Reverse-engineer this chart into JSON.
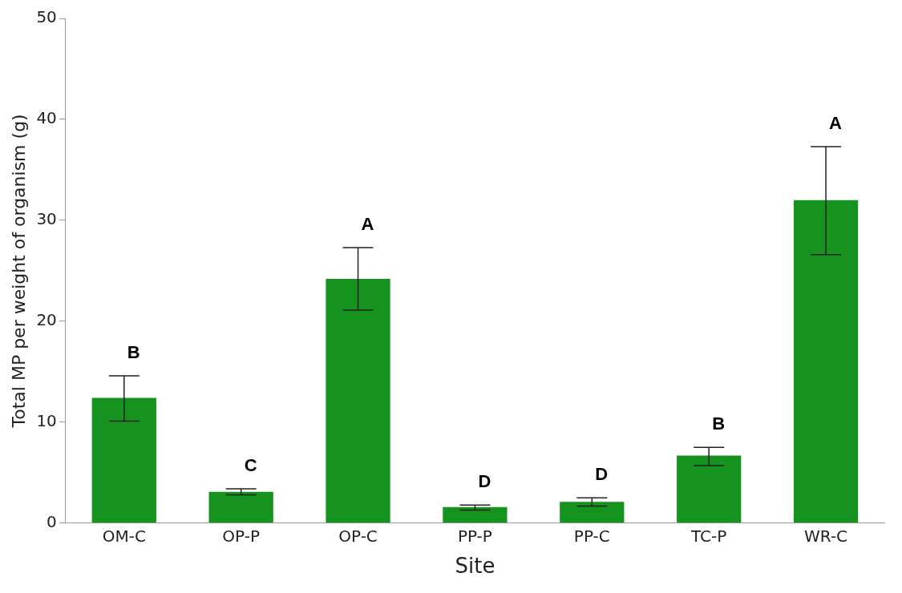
{
  "chart_data": {
    "type": "bar",
    "xlabel": "Site",
    "ylabel": "Total MP per weight of organism (g)",
    "categories": [
      "OM-C",
      "OP-P",
      "OP-C",
      "PP-P",
      "PP-C",
      "TC-P",
      "WR-C"
    ],
    "values": [
      12.4,
      3.1,
      24.2,
      1.6,
      2.1,
      6.7,
      32.0
    ],
    "errors": [
      [
        10.1,
        14.6
      ],
      [
        2.8,
        3.4
      ],
      [
        21.1,
        27.3
      ],
      [
        1.3,
        1.8
      ],
      [
        1.7,
        2.5
      ],
      [
        5.7,
        7.5
      ],
      [
        26.6,
        37.3
      ]
    ],
    "color": "#16921e",
    "ylim": [
      0,
      50
    ],
    "yticks": [
      0,
      10,
      20,
      30,
      40,
      50
    ],
    "grid": false,
    "annotations": [
      "B",
      "C",
      "A",
      "D",
      "D",
      "B",
      "A"
    ]
  }
}
